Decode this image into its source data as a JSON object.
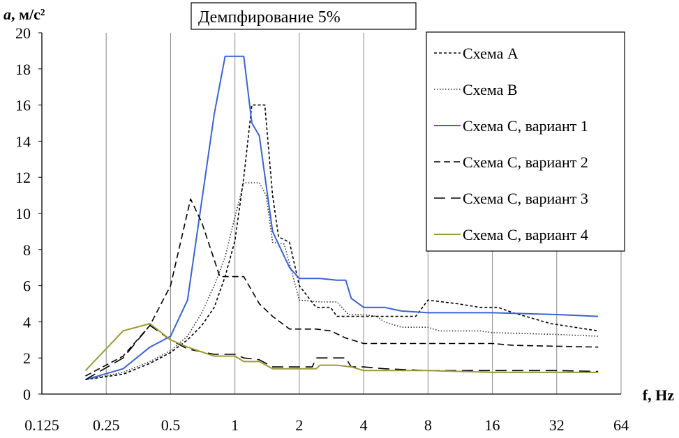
{
  "chart_data": {
    "type": "line",
    "title": "Демпфирование 5%",
    "xlabel": "f, Hz",
    "ylabel_italic": "a",
    "ylabel_rest": ", м/с²",
    "x_scale": "log2",
    "xlim": [
      0.125,
      64
    ],
    "ylim": [
      0,
      20
    ],
    "x_ticks": [
      0.125,
      0.25,
      0.5,
      1,
      2,
      4,
      8,
      16,
      32,
      64
    ],
    "x_tick_labels": [
      "0.125",
      "0.25",
      "0.5",
      "1",
      "2",
      "4",
      "8",
      "16",
      "32",
      "64"
    ],
    "y_ticks": [
      0,
      2,
      4,
      6,
      8,
      10,
      12,
      14,
      16,
      18,
      20
    ],
    "y_tick_labels": [
      "0",
      "2",
      "4",
      "6",
      "8",
      "10",
      "12",
      "14",
      "16",
      "18",
      "20"
    ],
    "grid": "vertical",
    "legend_position": "top-right",
    "series": [
      {
        "name": "Схема А",
        "color": "#000000",
        "dash": "short",
        "points": [
          [
            0.2,
            0.8
          ],
          [
            0.3,
            1.1
          ],
          [
            0.4,
            1.7
          ],
          [
            0.5,
            2.3
          ],
          [
            0.6,
            3.0
          ],
          [
            0.7,
            3.8
          ],
          [
            0.8,
            4.8
          ],
          [
            0.9,
            6.5
          ],
          [
            1.0,
            8.5
          ],
          [
            1.1,
            12.0
          ],
          [
            1.2,
            16.0
          ],
          [
            1.38,
            16.0
          ],
          [
            1.5,
            11.0
          ],
          [
            1.6,
            8.7
          ],
          [
            1.8,
            8.4
          ],
          [
            2.0,
            6.0
          ],
          [
            2.4,
            4.8
          ],
          [
            2.8,
            4.8
          ],
          [
            3.0,
            4.3
          ],
          [
            4.0,
            4.3
          ],
          [
            5.0,
            4.3
          ],
          [
            7.0,
            4.3
          ],
          [
            8.0,
            5.2
          ],
          [
            11.0,
            5.0
          ],
          [
            14.0,
            4.8
          ],
          [
            17.0,
            4.8
          ],
          [
            20.0,
            4.5
          ],
          [
            30.0,
            3.9
          ],
          [
            50.0,
            3.5
          ]
        ]
      },
      {
        "name": "Схема В",
        "color": "#333333",
        "dash": "dotted",
        "points": [
          [
            0.2,
            0.8
          ],
          [
            0.3,
            1.2
          ],
          [
            0.4,
            1.8
          ],
          [
            0.5,
            2.4
          ],
          [
            0.6,
            3.2
          ],
          [
            0.7,
            4.5
          ],
          [
            0.8,
            6.0
          ],
          [
            0.9,
            7.6
          ],
          [
            1.0,
            9.8
          ],
          [
            1.1,
            11.7
          ],
          [
            1.3,
            11.7
          ],
          [
            1.4,
            11.0
          ],
          [
            1.5,
            8.4
          ],
          [
            1.7,
            8.3
          ],
          [
            2.0,
            5.2
          ],
          [
            2.5,
            5.1
          ],
          [
            3.0,
            5.1
          ],
          [
            3.4,
            4.4
          ],
          [
            4.0,
            4.4
          ],
          [
            4.6,
            4.3
          ],
          [
            5.0,
            4.0
          ],
          [
            6.0,
            3.7
          ],
          [
            8.0,
            3.7
          ],
          [
            9.0,
            3.5
          ],
          [
            14.0,
            3.5
          ],
          [
            16.0,
            3.4
          ],
          [
            32.0,
            3.3
          ],
          [
            50.0,
            3.2
          ]
        ]
      },
      {
        "name": "Схема С, вариант 1",
        "color": "#3a62d4",
        "dash": "solid",
        "points": [
          [
            0.2,
            0.8
          ],
          [
            0.3,
            1.4
          ],
          [
            0.4,
            2.6
          ],
          [
            0.5,
            3.2
          ],
          [
            0.6,
            5.2
          ],
          [
            0.8,
            15.5
          ],
          [
            0.9,
            18.7
          ],
          [
            1.1,
            18.7
          ],
          [
            1.2,
            15.0
          ],
          [
            1.3,
            14.3
          ],
          [
            1.5,
            9.0
          ],
          [
            1.8,
            7.0
          ],
          [
            2.0,
            6.4
          ],
          [
            2.5,
            6.4
          ],
          [
            3.0,
            6.3
          ],
          [
            3.3,
            6.3
          ],
          [
            3.5,
            5.3
          ],
          [
            4.0,
            4.8
          ],
          [
            5.0,
            4.8
          ],
          [
            6.0,
            4.6
          ],
          [
            8.0,
            4.5
          ],
          [
            16.0,
            4.5
          ],
          [
            32.0,
            4.4
          ],
          [
            50.0,
            4.3
          ]
        ]
      },
      {
        "name": "Схема С, вариант 2",
        "color": "#000000",
        "dash": "medium",
        "points": [
          [
            0.2,
            1.0
          ],
          [
            0.3,
            2.1
          ],
          [
            0.4,
            3.8
          ],
          [
            0.5,
            6.0
          ],
          [
            0.62,
            10.8
          ],
          [
            0.7,
            9.5
          ],
          [
            0.85,
            6.5
          ],
          [
            1.1,
            6.5
          ],
          [
            1.3,
            5.0
          ],
          [
            1.5,
            4.3
          ],
          [
            1.8,
            3.6
          ],
          [
            2.4,
            3.6
          ],
          [
            2.8,
            3.5
          ],
          [
            3.3,
            3.1
          ],
          [
            4.0,
            2.8
          ],
          [
            5.0,
            2.8
          ],
          [
            8.0,
            2.8
          ],
          [
            16.0,
            2.8
          ],
          [
            20.0,
            2.7
          ],
          [
            50.0,
            2.6
          ]
        ]
      },
      {
        "name": "Схема С, вариант 3",
        "color": "#000000",
        "dash": "long",
        "points": [
          [
            0.2,
            0.8
          ],
          [
            0.3,
            2.0
          ],
          [
            0.4,
            3.8
          ],
          [
            0.5,
            3.0
          ],
          [
            0.6,
            2.5
          ],
          [
            0.8,
            2.2
          ],
          [
            1.0,
            2.2
          ],
          [
            1.1,
            2.0
          ],
          [
            1.3,
            1.9
          ],
          [
            1.5,
            1.5
          ],
          [
            2.0,
            1.5
          ],
          [
            2.3,
            1.5
          ],
          [
            2.4,
            2.0
          ],
          [
            3.0,
            2.0
          ],
          [
            3.3,
            2.0
          ],
          [
            3.5,
            1.5
          ],
          [
            4.0,
            1.5
          ],
          [
            5.0,
            1.4
          ],
          [
            8.0,
            1.3
          ],
          [
            16.0,
            1.3
          ],
          [
            32.0,
            1.3
          ],
          [
            50.0,
            1.25
          ]
        ]
      },
      {
        "name": "Схема С, вариант 4",
        "color": "#9a9a3a",
        "dash": "solid",
        "points": [
          [
            0.2,
            1.3
          ],
          [
            0.3,
            3.5
          ],
          [
            0.4,
            3.9
          ],
          [
            0.5,
            3.0
          ],
          [
            0.6,
            2.6
          ],
          [
            0.8,
            2.1
          ],
          [
            1.0,
            2.1
          ],
          [
            1.1,
            1.8
          ],
          [
            1.3,
            1.8
          ],
          [
            1.5,
            1.4
          ],
          [
            2.0,
            1.4
          ],
          [
            2.4,
            1.4
          ],
          [
            2.5,
            1.6
          ],
          [
            3.0,
            1.6
          ],
          [
            3.5,
            1.5
          ],
          [
            4.0,
            1.3
          ],
          [
            5.0,
            1.3
          ],
          [
            8.0,
            1.3
          ],
          [
            16.0,
            1.2
          ],
          [
            32.0,
            1.2
          ],
          [
            50.0,
            1.2
          ]
        ]
      }
    ]
  }
}
